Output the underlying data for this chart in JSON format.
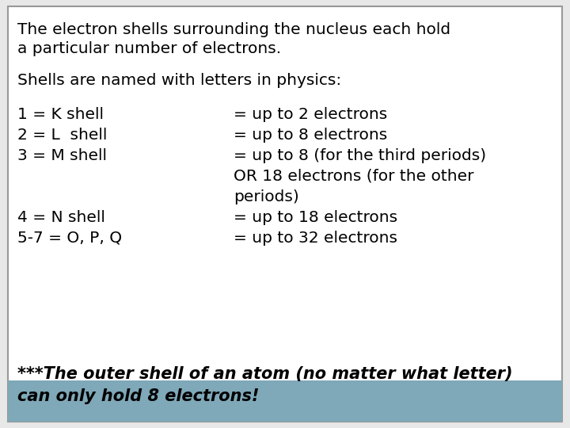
{
  "background_color": "#e8e8e8",
  "box_color": "#ffffff",
  "box_border_color": "#999999",
  "highlight_color": "#7fa8b8",
  "text_color": "#000000",
  "title_line1": "The electron shells surrounding the nucleus each hold",
  "title_line2": "a particular number of electrons.",
  "subtitle": "Shells are named with letters in physics:",
  "rows": [
    {
      "left": "1 = K shell",
      "right": "= up to 2 electrons"
    },
    {
      "left": "2 = L  shell",
      "right": "= up to 8 electrons"
    },
    {
      "left": "3 = M shell",
      "right": "= up to 8 (for the third periods)"
    },
    {
      "left": "",
      "right": "OR 18 electrons (for the other"
    },
    {
      "left": "",
      "right": "periods)"
    },
    {
      "left": "4 = N shell",
      "right": "= up to 18 electrons"
    },
    {
      "left": "5-7 = O, P, Q",
      "right": "= up to 32 electrons"
    }
  ],
  "footer_line1": "***The outer shell of an atom (no matter what letter)",
  "footer_line2": "can only hold 8 electrons!",
  "main_fontsize": 14.5,
  "footer_fontsize": 15
}
